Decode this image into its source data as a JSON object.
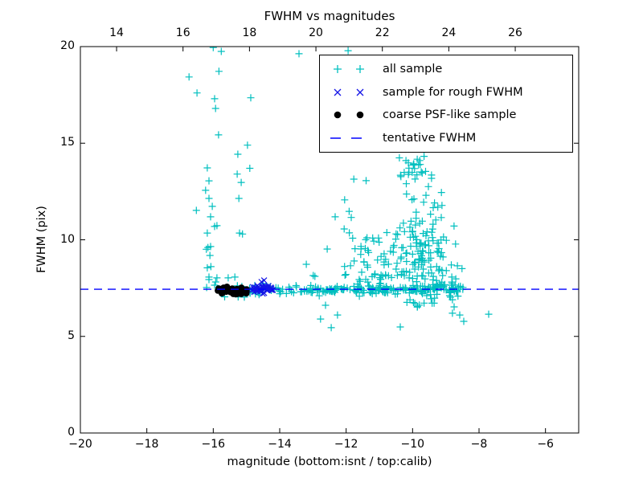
{
  "chart_data": {
    "type": "scatter",
    "title": "FWHM vs magnitudes",
    "xlabel": "magnitude (bottom:isnt / top:calib)",
    "ylabel": "FWHM (pix)",
    "xlim": [
      -20,
      -5
    ],
    "ylim": [
      0,
      20
    ],
    "grid": false,
    "bottom_ticks": [
      {
        "label": "−20",
        "value": -20
      },
      {
        "label": "−18",
        "value": -18
      },
      {
        "label": "−16",
        "value": -16
      },
      {
        "label": "−14",
        "value": -14
      },
      {
        "label": "−12",
        "value": -12
      },
      {
        "label": "−10",
        "value": -10
      },
      {
        "label": "−8",
        "value": -8
      },
      {
        "label": "−6",
        "value": -6
      }
    ],
    "top_ticks": [
      {
        "label": "14",
        "pos": -18.91
      },
      {
        "label": "16",
        "pos": -16.91
      },
      {
        "label": "18",
        "pos": -14.91
      },
      {
        "label": "20",
        "pos": -12.91
      },
      {
        "label": "22",
        "pos": -10.91
      },
      {
        "label": "24",
        "pos": -8.91
      },
      {
        "label": "26",
        "pos": -6.91
      }
    ],
    "left_ticks": [
      {
        "label": "0",
        "value": 0
      },
      {
        "label": "5",
        "value": 5
      },
      {
        "label": "10",
        "value": 10
      },
      {
        "label": "15",
        "value": 15
      },
      {
        "label": "20",
        "value": 20
      }
    ],
    "tentative_fwhm": 7.44,
    "layout_hints": {
      "legend_position": "upper right",
      "render_seed": 7,
      "ticks_direction": "in"
    },
    "series": [
      {
        "name": "all sample",
        "marker": "plus",
        "color": "#00bfbf",
        "points": [
          [
            -16.0,
            19.95
          ],
          [
            -15.76,
            19.75
          ],
          [
            -16.73,
            18.43
          ],
          [
            -15.83,
            18.72
          ],
          [
            -16.49,
            17.6
          ],
          [
            -15.96,
            17.3
          ],
          [
            -14.87,
            17.35
          ],
          [
            -15.93,
            16.8
          ],
          [
            -15.84,
            15.43
          ],
          [
            -14.97,
            14.9
          ],
          [
            -15.26,
            14.43
          ],
          [
            -16.18,
            13.72
          ],
          [
            -14.9,
            13.7
          ],
          [
            -15.28,
            13.4
          ],
          [
            -15.16,
            12.97
          ],
          [
            -16.13,
            13.05
          ],
          [
            -16.23,
            12.56
          ],
          [
            -16.13,
            12.14
          ],
          [
            -15.23,
            12.14
          ],
          [
            -16.51,
            11.52
          ],
          [
            -16.03,
            11.73
          ],
          [
            -16.08,
            11.19
          ],
          [
            -15.96,
            10.69
          ],
          [
            -15.89,
            10.73
          ],
          [
            -16.18,
            10.35
          ],
          [
            -15.21,
            10.35
          ],
          [
            -15.12,
            10.3
          ],
          [
            -16.16,
            9.6
          ],
          [
            -16.08,
            9.65
          ],
          [
            -16.21,
            9.51
          ],
          [
            -16.1,
            9.19
          ],
          [
            -16.07,
            8.61
          ],
          [
            -16.18,
            8.55
          ],
          [
            -16.13,
            8.07
          ],
          [
            -15.89,
            8.03
          ],
          [
            -15.35,
            8.07
          ],
          [
            -16.13,
            7.94
          ],
          [
            -15.96,
            7.65
          ],
          [
            -16.2,
            7.53
          ],
          [
            -15.55,
            8.03
          ],
          [
            -13.42,
            19.63
          ],
          [
            -11.94,
            19.79
          ],
          [
            -12.57,
            9.52
          ],
          [
            -13.2,
            8.73
          ],
          [
            -12.94,
            8.11
          ],
          [
            -12.99,
            8.15
          ],
          [
            -12.06,
            10.56
          ],
          [
            -12.33,
            11.19
          ],
          [
            -11.77,
            13.14
          ],
          [
            -11.4,
            13.06
          ],
          [
            -10.2,
            14.1
          ],
          [
            -9.77,
            13.9
          ],
          [
            -9.43,
            13.35
          ],
          [
            -8.82,
            8.07
          ],
          [
            -8.7,
            7.98
          ],
          [
            -8.8,
            7.73
          ],
          [
            -8.86,
            7.03
          ],
          [
            -8.8,
            6.9
          ],
          [
            -8.68,
            7.32
          ],
          [
            -8.75,
            6.53
          ],
          [
            -8.58,
            6.11
          ],
          [
            -8.8,
            6.2
          ],
          [
            -8.46,
            5.78
          ],
          [
            -12.62,
            6.61
          ],
          [
            -12.26,
            6.11
          ],
          [
            -12.77,
            5.9
          ],
          [
            -12.45,
            5.45
          ],
          [
            -10.37,
            5.49
          ],
          [
            -7.71,
            6.15
          ]
        ],
        "clusters": [
          {
            "n": 30,
            "x": {
              "dist": "uniform",
              "a": -15.95,
              "b": -14.05
            },
            "y": {
              "dist": "gauss",
              "mean": 7.35,
              "sd": 0.2,
              "min": 6.85,
              "max": 7.95
            }
          },
          {
            "n": 150,
            "x": {
              "dist": "uniform",
              "a": -14.05,
              "b": -8.35
            },
            "y": {
              "dist": "gauss",
              "mean": 7.42,
              "sd": 0.1,
              "min": 7.1,
              "max": 7.8
            }
          },
          {
            "n": 45,
            "x": {
              "dist": "uniform",
              "a": -13.2,
              "b": -8.5
            },
            "y": {
              "dist": "gauss",
              "mean": 7.45,
              "sd": 0.22,
              "min": 6.9,
              "max": 8.1
            }
          },
          {
            "n": 45,
            "x": {
              "dist": "uniform",
              "a": -12.05,
              "b": -10.8
            },
            "y": {
              "dist": "halfgauss",
              "base": 7.8,
              "sd": 1.7,
              "max": 13.2
            }
          },
          {
            "n": 150,
            "x": {
              "dist": "gauss",
              "mean": -9.75,
              "sd": 0.55,
              "min": -10.9,
              "max": -8.5
            },
            "y": {
              "dist": "halfgauss",
              "base": 7.55,
              "sd": 2.3,
              "max": 13.4
            }
          },
          {
            "n": 22,
            "x": {
              "dist": "gauss",
              "mean": -9.9,
              "sd": 0.3,
              "min": -10.5,
              "max": -9.3
            },
            "y": {
              "dist": "uniform",
              "a": 12.9,
              "b": 14.4
            }
          },
          {
            "n": 16,
            "x": {
              "dist": "gauss",
              "mean": -9.55,
              "sd": 0.35,
              "min": -10.3,
              "max": -8.8
            },
            "y": {
              "dist": "uniform",
              "a": 6.4,
              "b": 7.3
            }
          }
        ]
      },
      {
        "name": "sample for rough FWHM",
        "marker": "x",
        "color": "#1414e6",
        "points": [
          [
            -14.47,
            7.9
          ],
          [
            -14.55,
            7.82
          ]
        ],
        "clusters": [
          {
            "n": 42,
            "x": {
              "dist": "gauss",
              "mean": -14.58,
              "sd": 0.18,
              "min": -14.85,
              "max": -13.95
            },
            "y": {
              "dist": "gauss",
              "mean": 7.44,
              "sd": 0.09,
              "min": 7.2,
              "max": 7.7
            }
          }
        ]
      },
      {
        "name": "coarse PSF-like sample",
        "marker": "dot",
        "color": "#000000",
        "points": [],
        "clusters": [
          {
            "n": 55,
            "x": {
              "dist": "gauss",
              "mean": -15.42,
              "sd": 0.26,
              "min": -15.93,
              "max": -14.83
            },
            "y": {
              "dist": "gauss",
              "mean": 7.33,
              "sd": 0.08,
              "min": 7.12,
              "max": 7.58
            }
          }
        ]
      },
      {
        "name": "tentative FWHM",
        "type": "hline",
        "color": "#0000ff",
        "y": 7.44,
        "dash": [
          10,
          7
        ]
      }
    ],
    "legend": {
      "entries": [
        {
          "label": "all sample",
          "marker": "plus",
          "color": "#00bfbf"
        },
        {
          "label": "sample for rough FWHM",
          "marker": "x",
          "color": "#1414e6"
        },
        {
          "label": "coarse PSF-like sample",
          "marker": "dot",
          "color": "#000000"
        },
        {
          "label": "tentative FWHM",
          "marker": "dash",
          "color": "#0000ff"
        }
      ]
    }
  }
}
